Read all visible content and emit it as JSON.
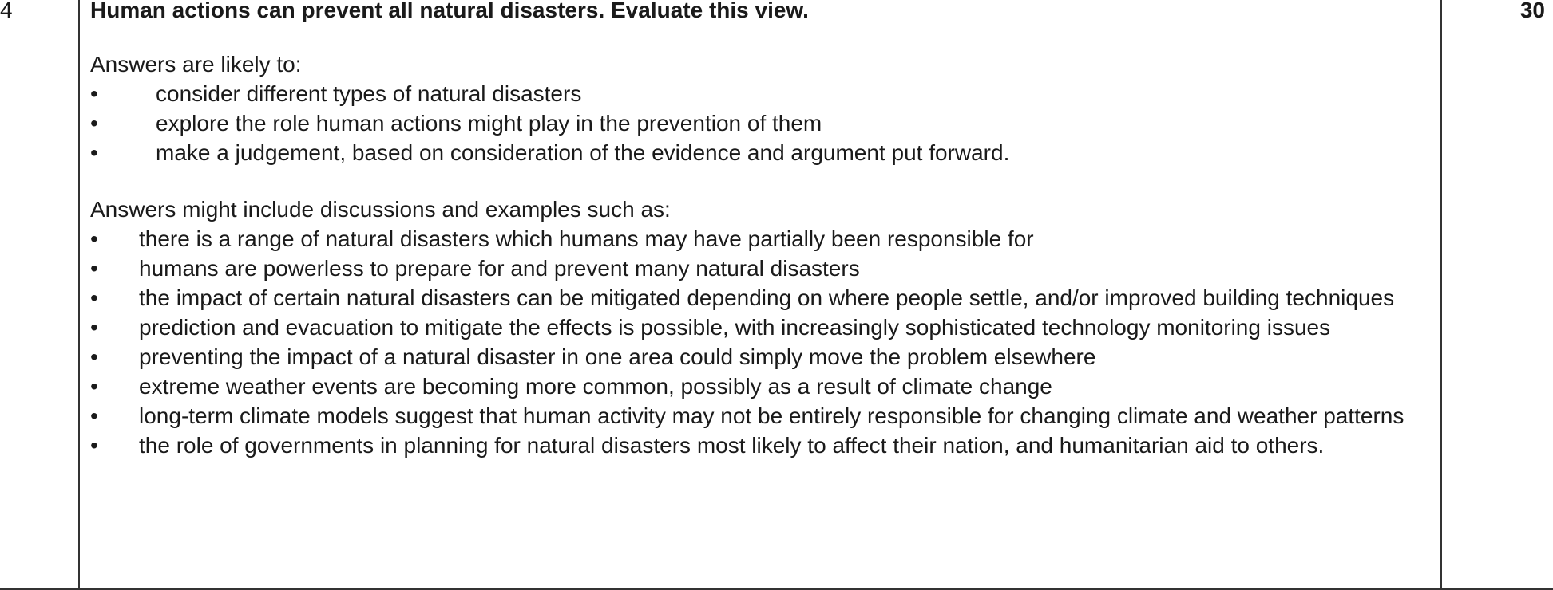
{
  "question_number": "4",
  "marks": "30",
  "question_text": "Human actions can prevent all natural disasters. Evaluate this view.",
  "likely_intro": "Answers are likely to:",
  "likely_points": [
    "consider different types of natural disasters",
    "explore the role human actions might play in the prevention of them",
    "make a judgement, based on consideration of the evidence and argument put forward."
  ],
  "include_intro": "Answers might include discussions and examples such as:",
  "include_points": [
    "there is a range of natural disasters which humans may have partially been responsible for",
    "humans are powerless to prepare for and prevent many natural disasters",
    "the impact of certain natural disasters can be mitigated depending on where people settle, and/or improved building techniques",
    "prediction and evacuation to mitigate the effects is possible, with increasingly sophisticated technology monitoring issues",
    "preventing the impact of a natural disaster in one area could simply move the problem elsewhere",
    "extreme weather events are becoming more common, possibly as a result of climate change",
    "long-term climate models suggest that human activity may not be entirely responsible for changing climate and weather patterns",
    "the role of governments in planning for natural disasters most likely to affect their nation, and humanitarian aid to others."
  ],
  "bullet_glyph": "•"
}
